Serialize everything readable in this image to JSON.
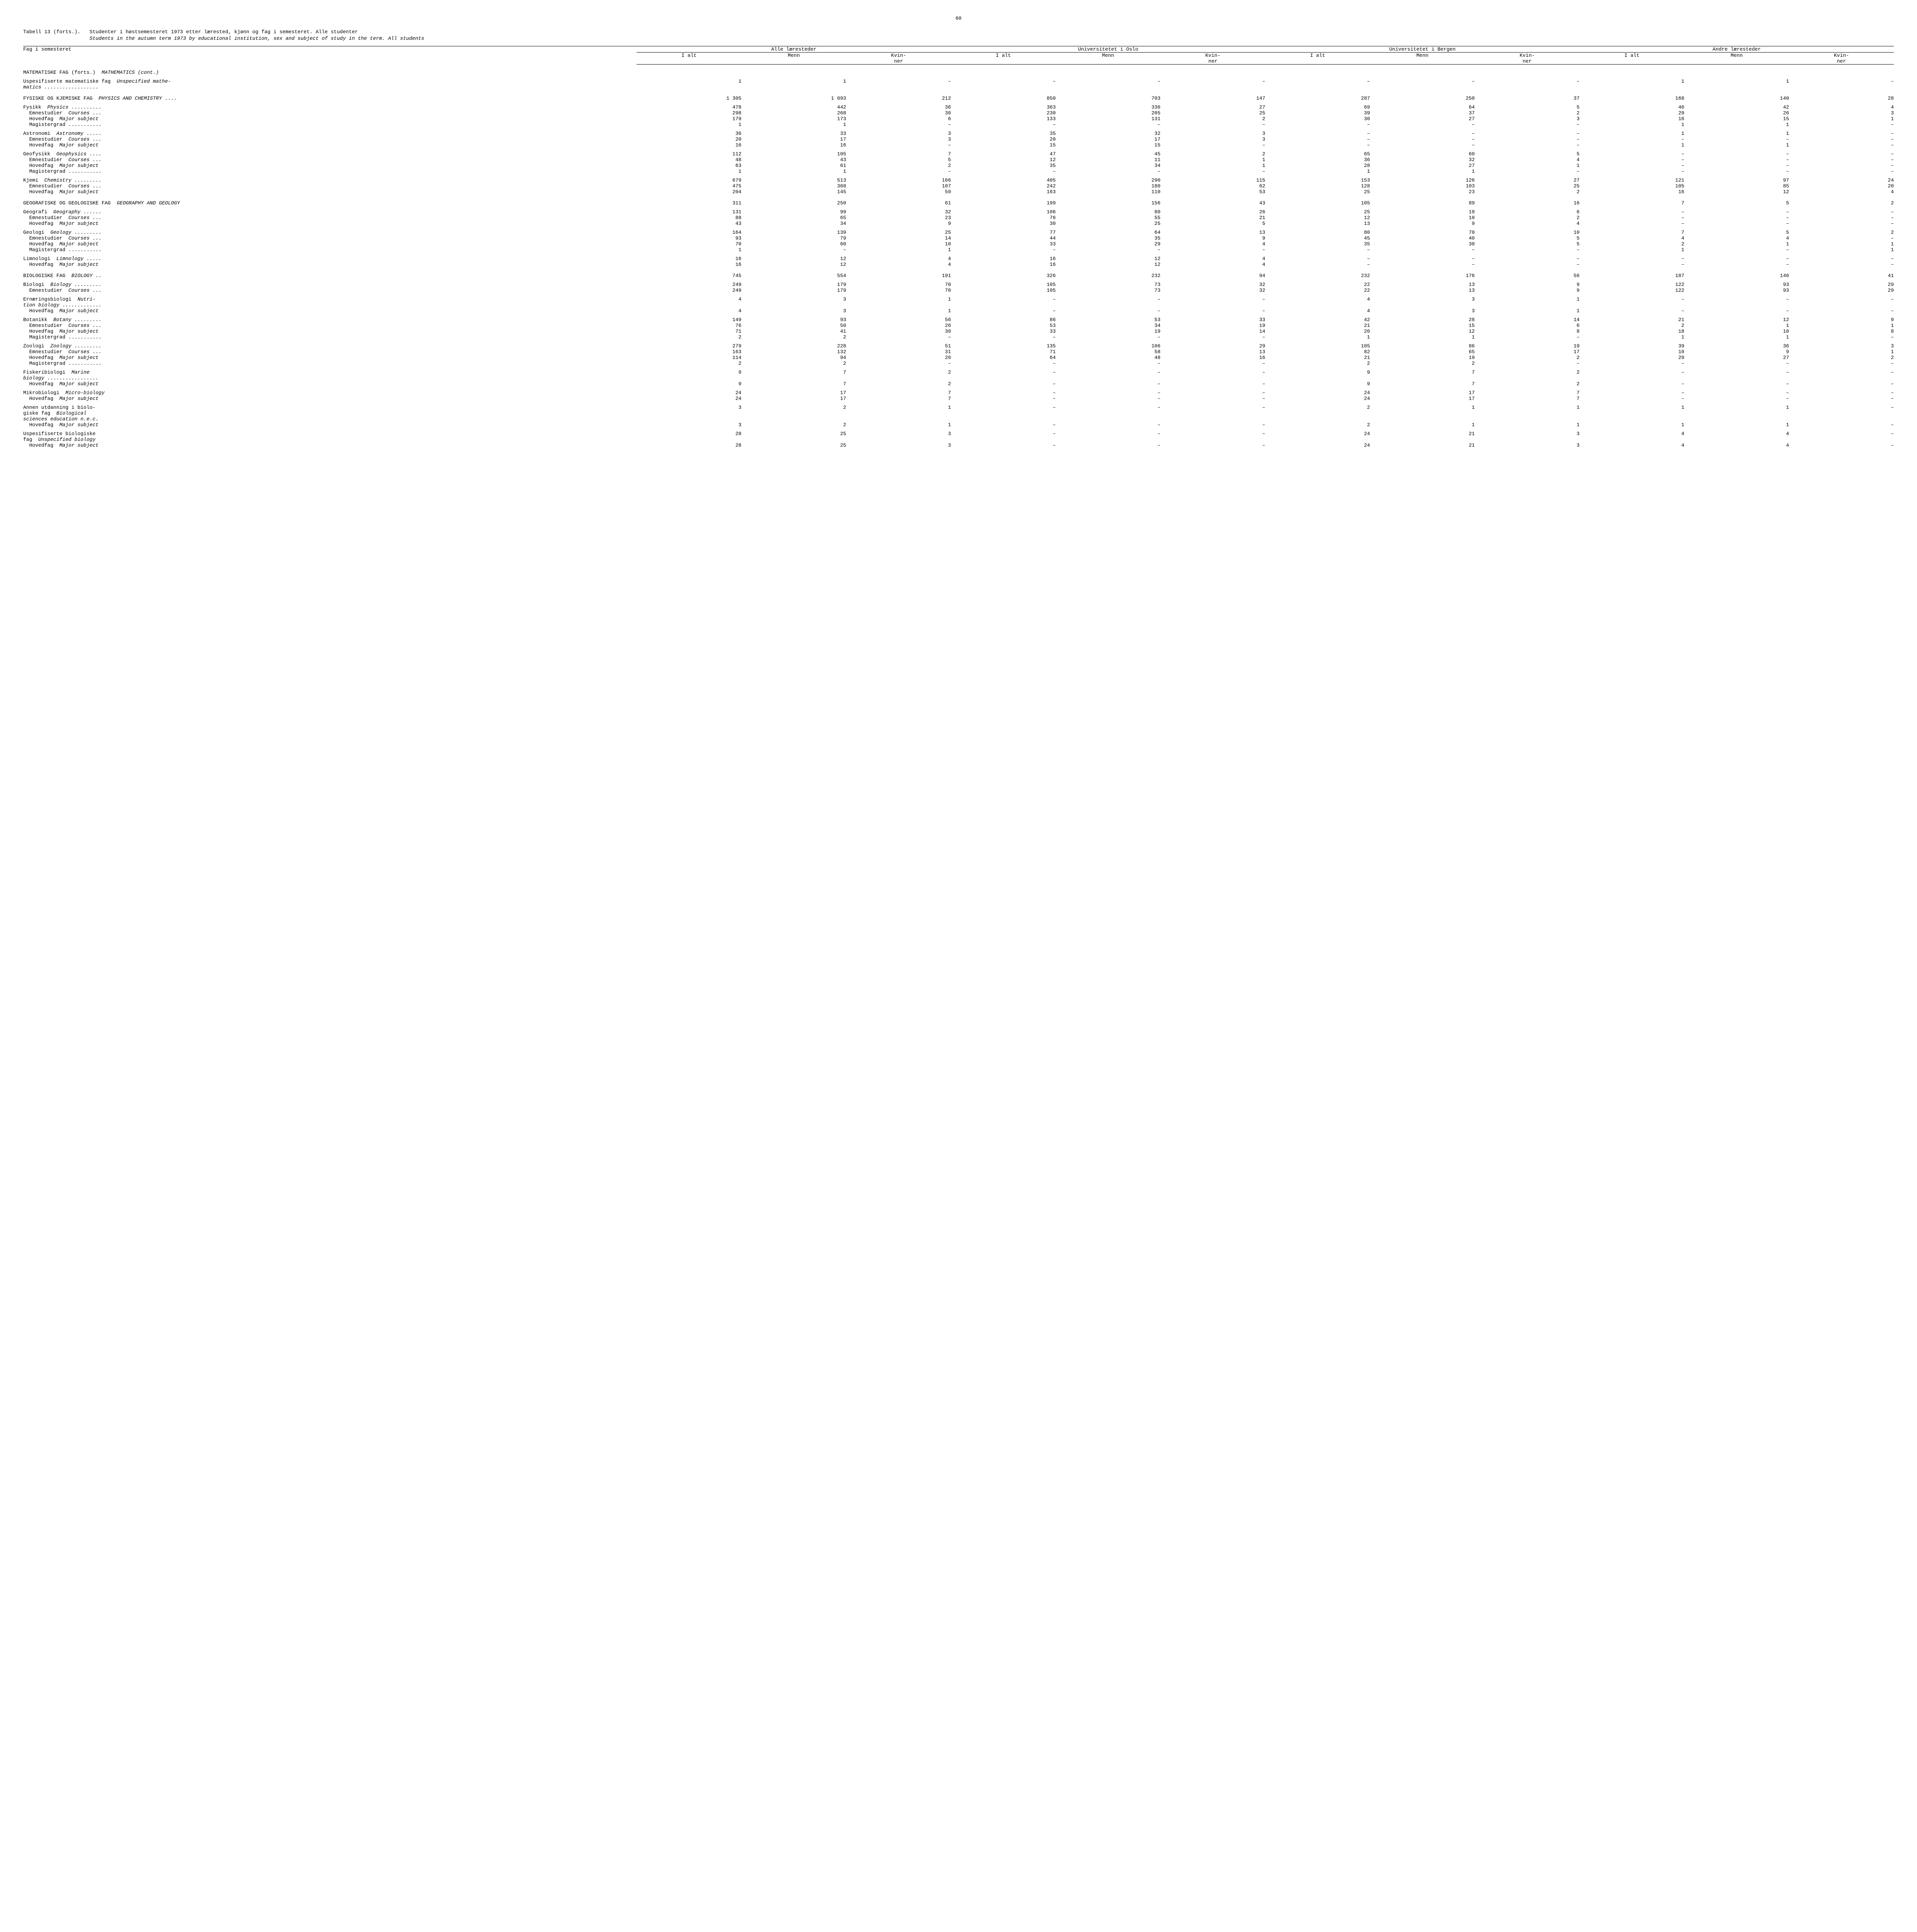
{
  "page_number": "60",
  "caption_prefix": "Tabell 13 (forts.).",
  "caption_bold": "Studenter i høstsemesteret 1973 etter lærested, kjønn og fag i semesteret. Alle studenter",
  "caption_italic": "Students in the autumn term 1973 by educational institution, sex and subject of study in the term.  All students",
  "col_heading_subject": "Fag i semesteret",
  "group_headings": [
    "Alle læresteder",
    "Universitetet i Oslo",
    "Universitetet i Bergen",
    "Andre læresteder"
  ],
  "sub_headings": [
    "I alt",
    "Menn",
    "Kvin-\nner"
  ],
  "rows": [
    {
      "type": "section",
      "label": "MATEMATISKE FAG (forts.)",
      "italic": "MATHEMATICS (cont.)"
    },
    {
      "type": "data",
      "label": "Uspesifiserte matematiske fag",
      "italic": "Unspecified mathe-\nmatics ..................",
      "v": [
        "1",
        "1",
        "–",
        "–",
        "–",
        "–",
        "–",
        "–",
        "–",
        "1",
        "1",
        "–"
      ]
    },
    {
      "type": "section",
      "label": "FYSISKE OG KJEMISKE FAG",
      "italic": "PHYSICS AND CHEMISTRY ....",
      "v": [
        "1 305",
        "1 093",
        "212",
        "850",
        "703",
        "147",
        "287",
        "250",
        "37",
        "168",
        "140",
        "28"
      ]
    },
    {
      "type": "subhead",
      "label": "Fysikk",
      "italic": "Physics ..........",
      "v": [
        "478",
        "442",
        "36",
        "363",
        "336",
        "27",
        "69",
        "64",
        "5",
        "46",
        "42",
        "4"
      ]
    },
    {
      "type": "tight",
      "label": "  Emnestudier",
      "italic": "Courses ...",
      "v": [
        "298",
        "268",
        "30",
        "230",
        "205",
        "25",
        "39",
        "37",
        "2",
        "29",
        "26",
        "3"
      ]
    },
    {
      "type": "tight",
      "label": "  Hovedfag",
      "italic": "Major subject",
      "v": [
        "179",
        "173",
        "6",
        "133",
        "131",
        "2",
        "30",
        "27",
        "3",
        "16",
        "15",
        "1"
      ]
    },
    {
      "type": "tight",
      "label": "  Magistergrad ...........",
      "italic": "",
      "v": [
        "1",
        "1",
        "–",
        "–",
        "–",
        "–",
        "–",
        "–",
        "–",
        "1",
        "1",
        "–"
      ]
    },
    {
      "type": "subhead",
      "label": "Astronomi",
      "italic": "Astronomy .....",
      "v": [
        "36",
        "33",
        "3",
        "35",
        "32",
        "3",
        "–",
        "–",
        "–",
        "1",
        "1",
        "–"
      ]
    },
    {
      "type": "tight",
      "label": "  Emnestudier",
      "italic": "Courses ...",
      "v": [
        "20",
        "17",
        "3",
        "20",
        "17",
        "3",
        "–",
        "–",
        "–",
        "–",
        "–",
        "–"
      ]
    },
    {
      "type": "tight",
      "label": "  Hovedfag",
      "italic": "Major subject",
      "v": [
        "16",
        "16",
        "–",
        "15",
        "15",
        "–",
        "–",
        "–",
        "–",
        "1",
        "1",
        "–"
      ]
    },
    {
      "type": "subhead",
      "label": "Geofysikk",
      "italic": "Geophysics ....",
      "v": [
        "112",
        "105",
        "7",
        "47",
        "45",
        "2",
        "65",
        "60",
        "5",
        "–",
        "–",
        "–"
      ]
    },
    {
      "type": "tight",
      "label": "  Emnestudier",
      "italic": "Courses ...",
      "v": [
        "48",
        "43",
        "5",
        "12",
        "11",
        "1",
        "36",
        "32",
        "4",
        "–",
        "–",
        "–"
      ]
    },
    {
      "type": "tight",
      "label": "  Hovedfag",
      "italic": "Major subject",
      "v": [
        "63",
        "61",
        "2",
        "35",
        "34",
        "1",
        "28",
        "27",
        "1",
        "–",
        "–",
        "–"
      ]
    },
    {
      "type": "tight",
      "label": "  Magistergrad ...........",
      "italic": "",
      "v": [
        "1",
        "1",
        "–",
        "–",
        "–",
        "–",
        "1",
        "1",
        "–",
        "–",
        "–",
        "–"
      ]
    },
    {
      "type": "subhead",
      "label": "Kjemi",
      "italic": "Chemistry .........",
      "v": [
        "679",
        "513",
        "166",
        "405",
        "290",
        "115",
        "153",
        "126",
        "27",
        "121",
        "97",
        "24"
      ]
    },
    {
      "type": "tight",
      "label": "  Emnestudier",
      "italic": "Courses ...",
      "v": [
        "475",
        "368",
        "107",
        "242",
        "180",
        "62",
        "128",
        "103",
        "25",
        "105",
        "85",
        "20"
      ]
    },
    {
      "type": "tight",
      "label": "  Hovedfag",
      "italic": "Major subject",
      "v": [
        "204",
        "145",
        "59",
        "163",
        "110",
        "53",
        "25",
        "23",
        "2",
        "16",
        "12",
        "4"
      ]
    },
    {
      "type": "section",
      "label": "GEOGRAFISKE OG GEOLOGISKE FAG",
      "italic": "GEOGRAPHY AND GEOLOGY",
      "v": [
        "311",
        "250",
        "61",
        "199",
        "156",
        "43",
        "105",
        "89",
        "16",
        "7",
        "5",
        "2"
      ]
    },
    {
      "type": "subhead",
      "label": "Geografi",
      "italic": "Geography ......",
      "v": [
        "131",
        "99",
        "32",
        "106",
        "80",
        "26",
        "25",
        "19",
        "6",
        "–",
        "–",
        "–"
      ]
    },
    {
      "type": "tight",
      "label": "  Emnestudier",
      "italic": "Courses ...",
      "v": [
        "88",
        "65",
        "23",
        "76",
        "55",
        "21",
        "12",
        "10",
        "2",
        "–",
        "–",
        "–"
      ]
    },
    {
      "type": "tight",
      "label": "  Hovedfag",
      "italic": "Major subject",
      "v": [
        "43",
        "34",
        "9",
        "30",
        "25",
        "5",
        "13",
        "9",
        "4",
        "–",
        "–",
        "–"
      ]
    },
    {
      "type": "subhead",
      "label": "Geologi",
      "italic": "Geology .........",
      "v": [
        "164",
        "139",
        "25",
        "77",
        "64",
        "13",
        "80",
        "70",
        "10",
        "7",
        "5",
        "2"
      ]
    },
    {
      "type": "tight",
      "label": "  Emnestudier",
      "italic": "Courses ...",
      "v": [
        "93",
        "79",
        "14",
        "44",
        "35",
        "9",
        "45",
        "40",
        "5",
        "4",
        "4",
        "–"
      ]
    },
    {
      "type": "tight",
      "label": "  Hovedfag",
      "italic": "Major subject",
      "v": [
        "70",
        "60",
        "10",
        "33",
        "29",
        "4",
        "35",
        "30",
        "5",
        "2",
        "1",
        "1"
      ]
    },
    {
      "type": "tight",
      "label": "  Magistergrad ...........",
      "italic": "",
      "v": [
        "1",
        "–",
        "1",
        "–",
        "–",
        "–",
        "–",
        "–",
        "–",
        "1",
        "–",
        "1"
      ]
    },
    {
      "type": "subhead",
      "label": "Limnologi",
      "italic": "Limnology .....",
      "v": [
        "16",
        "12",
        "4",
        "16",
        "12",
        "4",
        "–",
        "–",
        "–",
        "–",
        "–",
        "–"
      ]
    },
    {
      "type": "tight",
      "label": "  Hovedfag",
      "italic": "Major subject",
      "v": [
        "16",
        "12",
        "4",
        "16",
        "12",
        "4",
        "–",
        "–",
        "–",
        "–",
        "–",
        "–"
      ]
    },
    {
      "type": "section",
      "label": "BIOLOGISKE FAG",
      "italic": "BIOLOGY ..",
      "v": [
        "745",
        "554",
        "191",
        "326",
        "232",
        "94",
        "232",
        "176",
        "56",
        "187",
        "146",
        "41"
      ]
    },
    {
      "type": "subhead",
      "label": "Biologi",
      "italic": "Biology .........",
      "v": [
        "249",
        "179",
        "70",
        "105",
        "73",
        "32",
        "22",
        "13",
        "9",
        "122",
        "93",
        "29"
      ]
    },
    {
      "type": "tight",
      "label": "  Emnestudier",
      "italic": "Courses ...",
      "v": [
        "249",
        "179",
        "70",
        "105",
        "73",
        "32",
        "22",
        "13",
        "9",
        "122",
        "93",
        "29"
      ]
    },
    {
      "type": "subhead",
      "label": "Ernæringsbiologi",
      "italic": "Nutri-\ntion biology .............",
      "v": [
        "4",
        "3",
        "1",
        "–",
        "–",
        "–",
        "4",
        "3",
        "1",
        "–",
        "–",
        "–"
      ]
    },
    {
      "type": "tight",
      "label": "  Hovedfag",
      "italic": "Major subject",
      "v": [
        "4",
        "3",
        "1",
        "–",
        "–",
        "–",
        "4",
        "3",
        "1",
        "–",
        "–",
        "–"
      ]
    },
    {
      "type": "subhead",
      "label": "Botanikk",
      "italic": "Botany .........",
      "v": [
        "149",
        "93",
        "56",
        "86",
        "53",
        "33",
        "42",
        "28",
        "14",
        "21",
        "12",
        "9"
      ]
    },
    {
      "type": "tight",
      "label": "  Emnestudier",
      "italic": "Courses ...",
      "v": [
        "76",
        "50",
        "26",
        "53",
        "34",
        "19",
        "21",
        "15",
        "6",
        "2",
        "1",
        "1"
      ]
    },
    {
      "type": "tight",
      "label": "  Hovedfag",
      "italic": "Major subject",
      "v": [
        "71",
        "41",
        "30",
        "33",
        "19",
        "14",
        "20",
        "12",
        "8",
        "18",
        "10",
        "8"
      ]
    },
    {
      "type": "tight",
      "label": "  Magistergrad ...........",
      "italic": "",
      "v": [
        "2",
        "2",
        "–",
        "–",
        "–",
        "–",
        "1",
        "1",
        "–",
        "1",
        "1",
        "–"
      ]
    },
    {
      "type": "subhead",
      "label": "Zoologi",
      "italic": "Zoology .........",
      "v": [
        "279",
        "228",
        "51",
        "135",
        "106",
        "29",
        "105",
        "86",
        "19",
        "39",
        "36",
        "3"
      ]
    },
    {
      "type": "tight",
      "label": "  Emnestudier",
      "italic": "Courses ...",
      "v": [
        "163",
        "132",
        "31",
        "71",
        "58",
        "13",
        "82",
        "65",
        "17",
        "10",
        "9",
        "1"
      ]
    },
    {
      "type": "tight",
      "label": "  Hovedfag",
      "italic": "Major subject",
      "v": [
        "114",
        "94",
        "20",
        "64",
        "48",
        "16",
        "21",
        "19",
        "2",
        "29",
        "27",
        "2"
      ]
    },
    {
      "type": "tight",
      "label": "  Magistergrad ...........",
      "italic": "",
      "v": [
        "2",
        "2",
        "–",
        "–",
        "–",
        "–",
        "2",
        "2",
        "–",
        "–",
        "–",
        "–"
      ]
    },
    {
      "type": "subhead",
      "label": "Fiskeribiologi",
      "italic": "Marine\nbiology .................",
      "v": [
        "9",
        "7",
        "2",
        "–",
        "–",
        "–",
        "9",
        "7",
        "2",
        "–",
        "–",
        "–"
      ]
    },
    {
      "type": "tight",
      "label": "  Hovedfag",
      "italic": "Major subject",
      "v": [
        "9",
        "7",
        "2",
        "–",
        "–",
        "–",
        "9",
        "7",
        "2",
        "–",
        "–",
        "–"
      ]
    },
    {
      "type": "subhead",
      "label": "Mikrobiologi",
      "italic": "Micro-biology",
      "v": [
        "24",
        "17",
        "7",
        "–",
        "–",
        "–",
        "24",
        "17",
        "7",
        "–",
        "–",
        "–"
      ]
    },
    {
      "type": "tight",
      "label": "  Hovedfag",
      "italic": "Major subject",
      "v": [
        "24",
        "17",
        "7",
        "–",
        "–",
        "–",
        "24",
        "17",
        "7",
        "–",
        "–",
        "–"
      ]
    },
    {
      "type": "subhead",
      "label": "Annen utdanning i biolo-\ngiske fag",
      "italic": "Biological\nsciences education n.e.c.",
      "v": [
        "3",
        "2",
        "1",
        "–",
        "–",
        "–",
        "2",
        "1",
        "1",
        "1",
        "1",
        "–"
      ]
    },
    {
      "type": "tight",
      "label": "  Hovedfag",
      "italic": "Major subject",
      "v": [
        "3",
        "2",
        "1",
        "–",
        "–",
        "–",
        "2",
        "1",
        "1",
        "1",
        "1",
        "–"
      ]
    },
    {
      "type": "subhead",
      "label": "Uspesifiserte biologiske\nfag",
      "italic": "Unspecified biology",
      "v": [
        "28",
        "25",
        "3",
        "–",
        "–",
        "–",
        "24",
        "21",
        "3",
        "4",
        "4",
        "–"
      ]
    },
    {
      "type": "tight",
      "label": "  Hovedfag",
      "italic": "Major subject",
      "v": [
        "28",
        "25",
        "3",
        "–",
        "–",
        "–",
        "24",
        "21",
        "3",
        "4",
        "4",
        "–"
      ]
    }
  ]
}
